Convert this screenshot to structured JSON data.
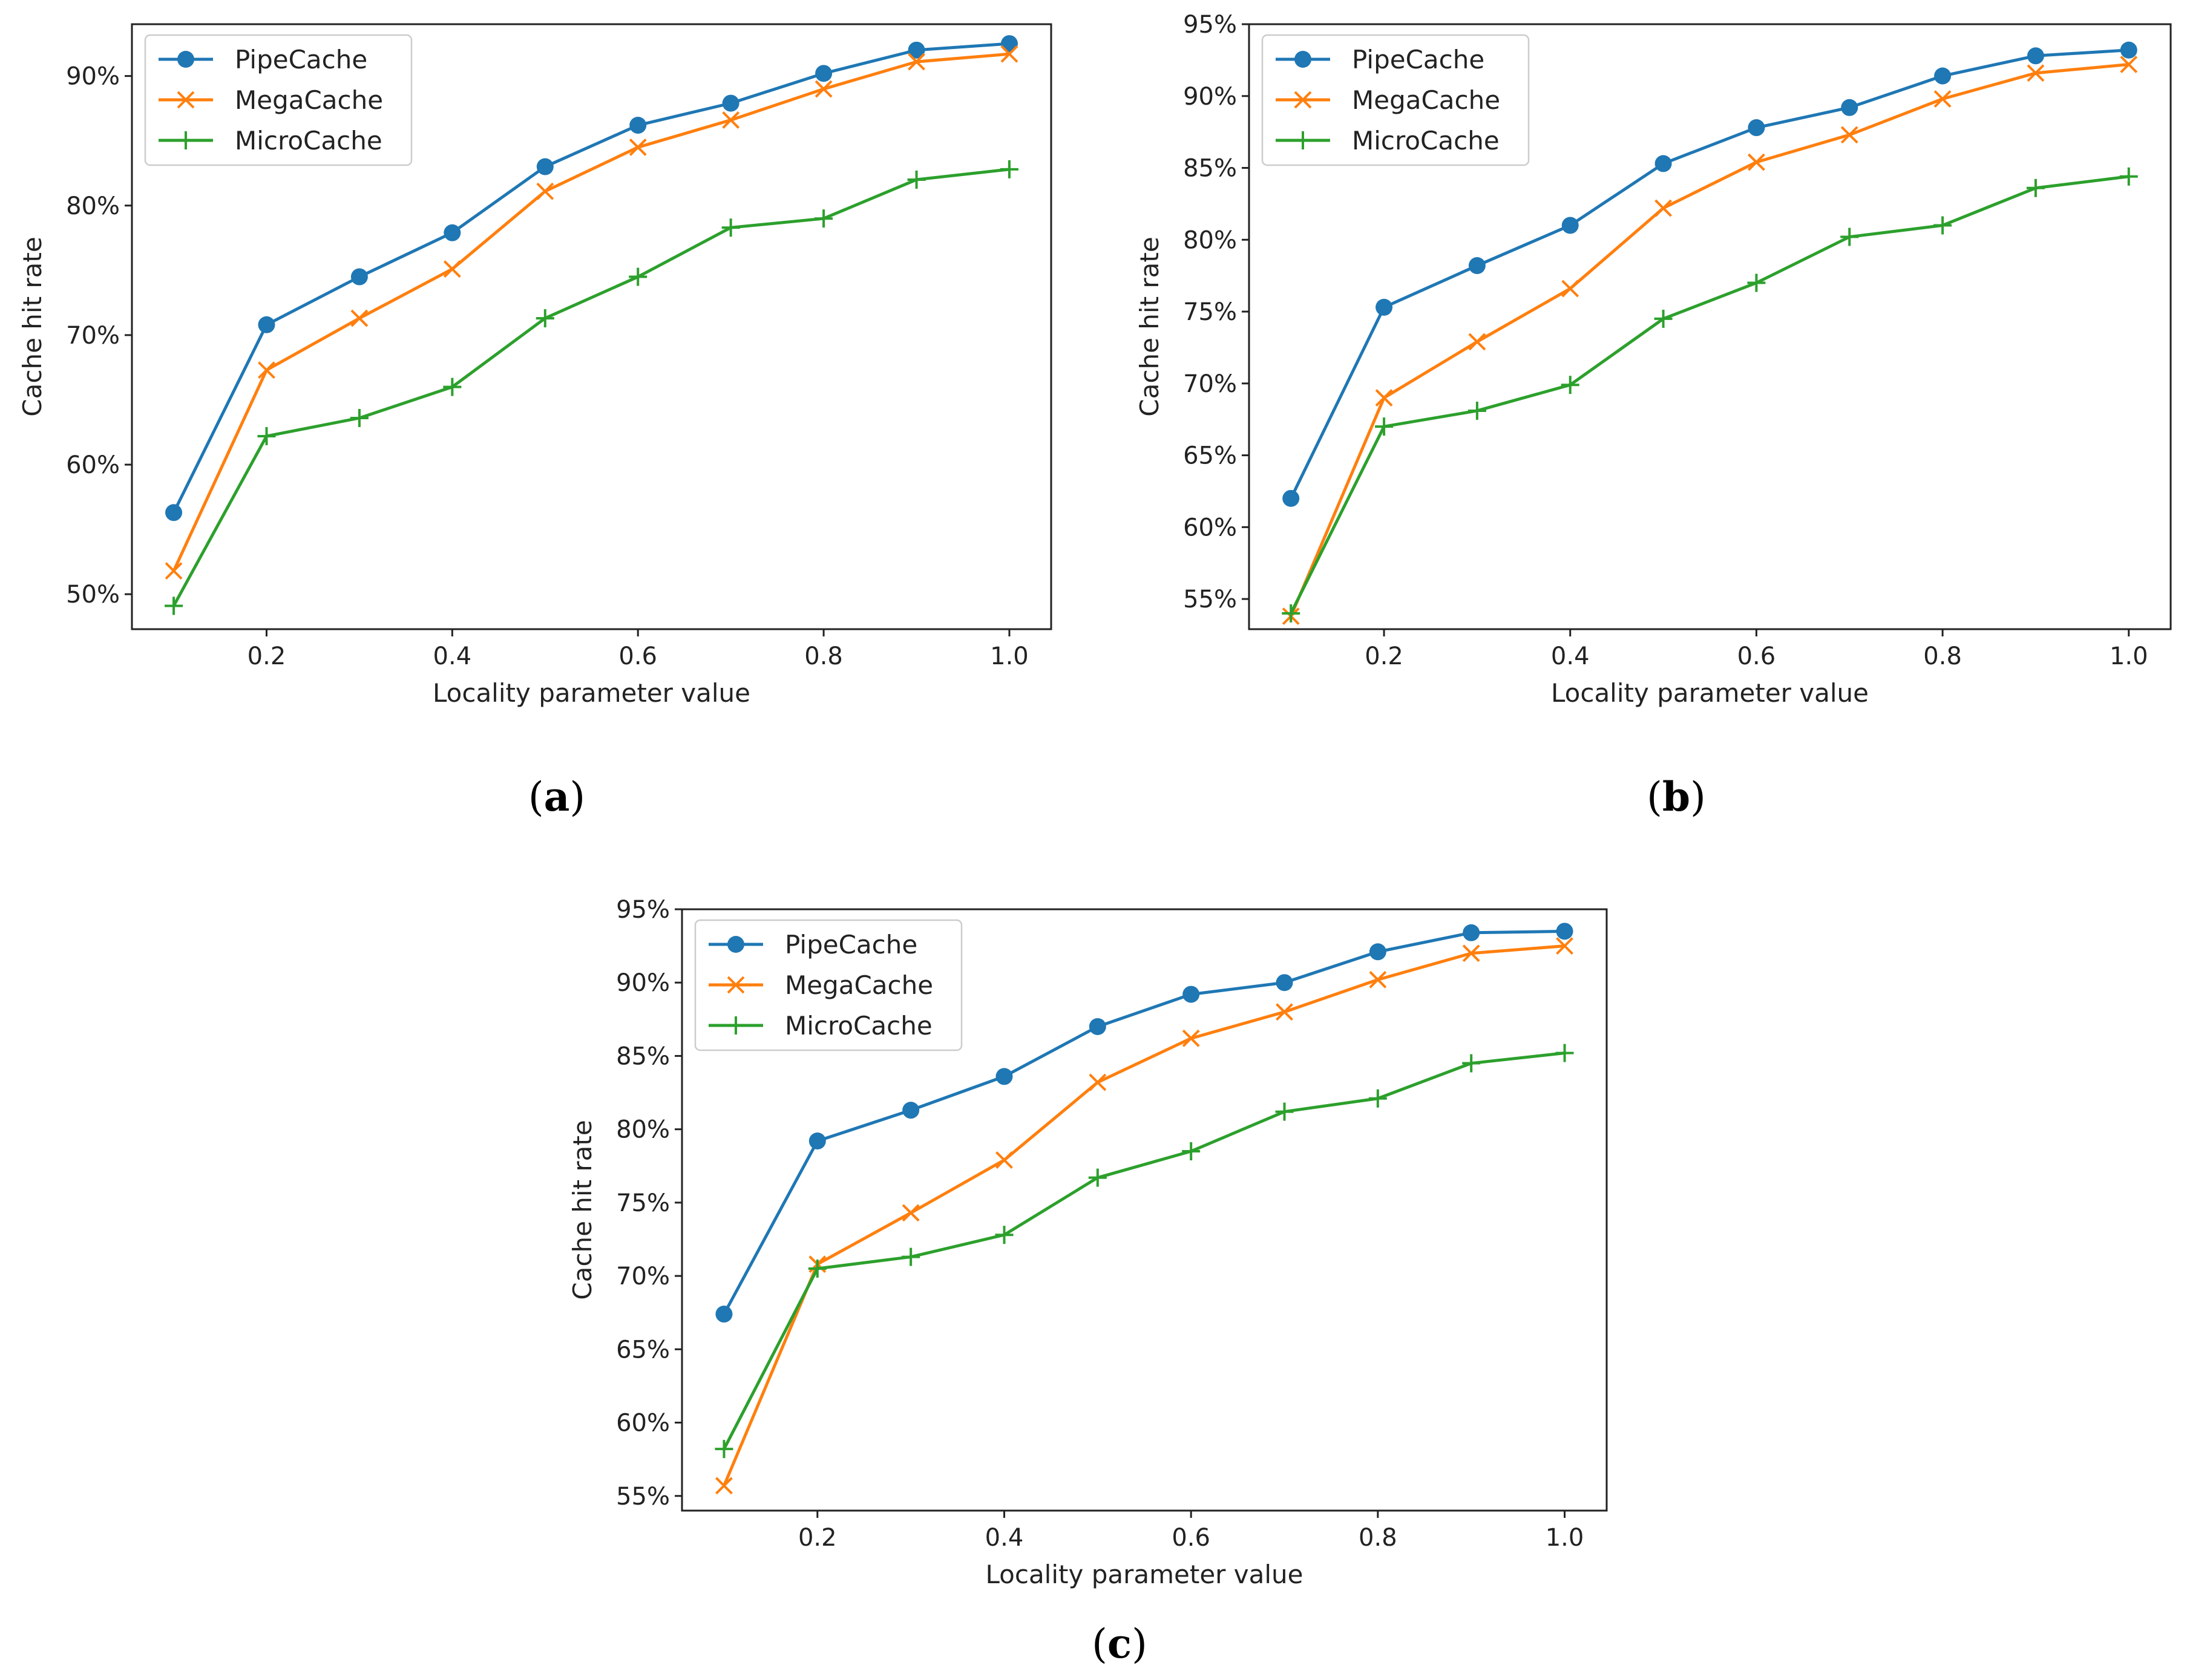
{
  "chart_data": [
    {
      "type": "line",
      "panel": "a",
      "caption": "(a)",
      "caption_parts": [
        "(",
        "a",
        ")"
      ],
      "xlabel": "Locality parameter value",
      "ylabel": "Cache hit rate",
      "x": [
        0.1,
        0.2,
        0.3,
        0.4,
        0.5,
        0.6,
        0.7,
        0.8,
        0.9,
        1.0
      ],
      "xticks": [
        0.2,
        0.4,
        0.6,
        0.8,
        1.0
      ],
      "xtick_labels": [
        "0.2",
        "0.4",
        "0.6",
        "0.8",
        "1.0"
      ],
      "xlim": [
        0.055,
        1.045
      ],
      "ylim": [
        47.3,
        94.0
      ],
      "yticks": [
        50,
        60,
        70,
        80,
        90
      ],
      "ytick_labels": [
        "50%",
        "60%",
        "70%",
        "80%",
        "90%"
      ],
      "legend_position": "top-left",
      "series": [
        {
          "name": "PipeCache",
          "marker": "circle",
          "color": "#1f77b4",
          "values": [
            56.3,
            70.8,
            74.5,
            77.9,
            83.0,
            86.2,
            87.9,
            90.2,
            92.0,
            92.5
          ]
        },
        {
          "name": "MegaCache",
          "marker": "x",
          "color": "#ff7f0e",
          "values": [
            51.8,
            67.3,
            71.3,
            75.1,
            81.1,
            84.5,
            86.6,
            89.0,
            91.1,
            91.7
          ]
        },
        {
          "name": "MicroCache",
          "marker": "plus",
          "color": "#2ca02c",
          "values": [
            49.1,
            62.2,
            63.6,
            66.0,
            71.3,
            74.5,
            78.3,
            79.0,
            82.0,
            82.8
          ]
        }
      ]
    },
    {
      "type": "line",
      "panel": "b",
      "caption": "(b)",
      "caption_parts": [
        "(",
        "b",
        ")"
      ],
      "xlabel": "Locality parameter value",
      "ylabel": "Cache hit rate",
      "x": [
        0.1,
        0.2,
        0.3,
        0.4,
        0.5,
        0.6,
        0.7,
        0.8,
        0.9,
        1.0
      ],
      "xticks": [
        0.2,
        0.4,
        0.6,
        0.8,
        1.0
      ],
      "xtick_labels": [
        "0.2",
        "0.4",
        "0.6",
        "0.8",
        "1.0"
      ],
      "xlim": [
        0.055,
        1.045
      ],
      "ylim": [
        52.9,
        95.0
      ],
      "yticks": [
        55,
        60,
        65,
        70,
        75,
        80,
        85,
        90,
        95
      ],
      "ytick_labels": [
        "55%",
        "60%",
        "65%",
        "70%",
        "75%",
        "80%",
        "85%",
        "90%",
        "95%"
      ],
      "legend_position": "top-left",
      "series": [
        {
          "name": "PipeCache",
          "marker": "circle",
          "color": "#1f77b4",
          "values": [
            62.0,
            75.3,
            78.2,
            81.0,
            85.3,
            87.8,
            89.2,
            91.4,
            92.8,
            93.2
          ]
        },
        {
          "name": "MegaCache",
          "marker": "x",
          "color": "#ff7f0e",
          "values": [
            53.8,
            69.0,
            72.9,
            76.6,
            82.2,
            85.4,
            87.3,
            89.8,
            91.6,
            92.2
          ]
        },
        {
          "name": "MicroCache",
          "marker": "plus",
          "color": "#2ca02c",
          "values": [
            54.0,
            67.0,
            68.1,
            69.9,
            74.5,
            77.0,
            80.2,
            81.0,
            83.6,
            84.4
          ]
        }
      ]
    },
    {
      "type": "line",
      "panel": "c",
      "caption": "(c)",
      "caption_parts": [
        "(",
        "c",
        ")"
      ],
      "xlabel": "Locality parameter value",
      "ylabel": "Cache hit rate",
      "x": [
        0.1,
        0.2,
        0.3,
        0.4,
        0.5,
        0.6,
        0.7,
        0.8,
        0.9,
        1.0
      ],
      "xticks": [
        0.2,
        0.4,
        0.6,
        0.8,
        1.0
      ],
      "xtick_labels": [
        "0.2",
        "0.4",
        "0.6",
        "0.8",
        "1.0"
      ],
      "xlim": [
        0.055,
        1.045
      ],
      "ylim": [
        54.0,
        95.0
      ],
      "yticks": [
        55,
        60,
        65,
        70,
        75,
        80,
        85,
        90,
        95
      ],
      "ytick_labels": [
        "55%",
        "60%",
        "65%",
        "70%",
        "75%",
        "80%",
        "85%",
        "90%",
        "95%"
      ],
      "legend_position": "top-left",
      "series": [
        {
          "name": "PipeCache",
          "marker": "circle",
          "color": "#1f77b4",
          "values": [
            67.4,
            79.2,
            81.3,
            83.6,
            87.0,
            89.2,
            90.0,
            92.1,
            93.4,
            93.5
          ]
        },
        {
          "name": "MegaCache",
          "marker": "x",
          "color": "#ff7f0e",
          "values": [
            55.7,
            70.8,
            74.3,
            77.9,
            83.2,
            86.2,
            88.0,
            90.2,
            92.0,
            92.5
          ]
        },
        {
          "name": "MicroCache",
          "marker": "plus",
          "color": "#2ca02c",
          "values": [
            58.2,
            70.5,
            71.3,
            72.8,
            76.7,
            78.5,
            81.2,
            82.1,
            84.5,
            85.2
          ]
        }
      ]
    }
  ]
}
